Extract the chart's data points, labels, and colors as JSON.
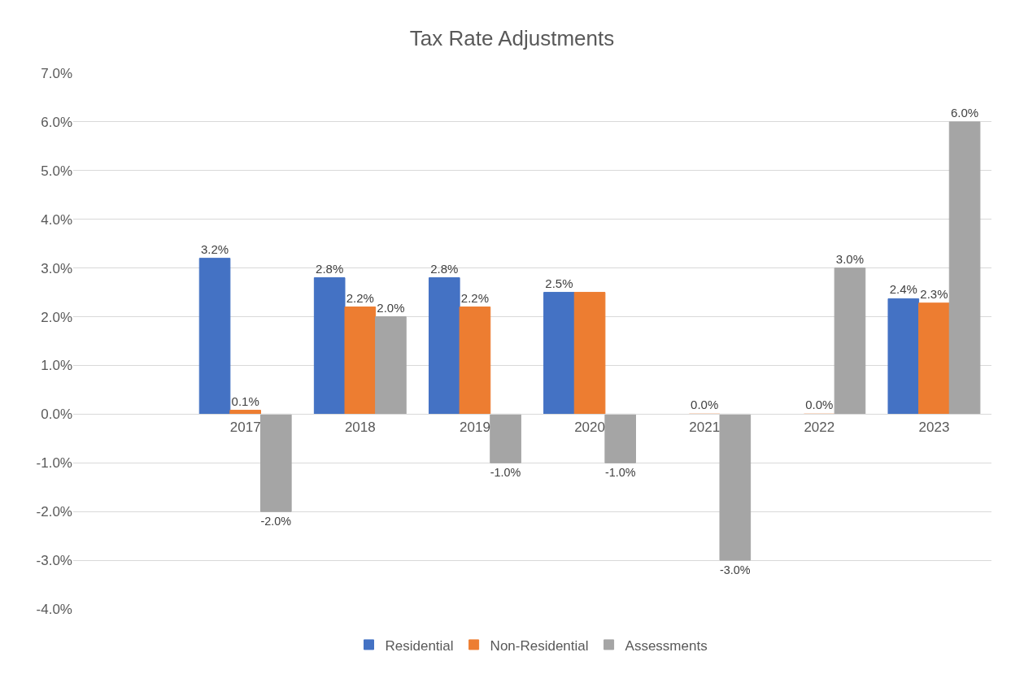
{
  "chart_data": {
    "type": "bar",
    "title": "Tax Rate Adjustments",
    "categories": [
      null,
      "2017",
      "2018",
      "2019",
      "2020",
      "2021",
      "2022",
      "2023"
    ],
    "series": [
      {
        "name": "Residential",
        "color": "#4472c4",
        "values": [
          null,
          3.2,
          2.8,
          2.8,
          2.5,
          null,
          null,
          2.37
        ],
        "value_labels": [
          null,
          "3.2%",
          "2.8%",
          "2.8%",
          "2.5%",
          null,
          null,
          "2.4%"
        ]
      },
      {
        "name": "Non-Residential",
        "color": "#ed7d31",
        "values": [
          null,
          0.08,
          2.2,
          2.2,
          2.5,
          0.0,
          0.0,
          2.28
        ],
        "value_labels": [
          null,
          "0.1%",
          "2.2%",
          "2.2%",
          null,
          "0.0%",
          "0.0%",
          "2.3%"
        ]
      },
      {
        "name": "Assessments",
        "color": "#a5a5a5",
        "values": [
          null,
          -2.0,
          2.0,
          -1.0,
          -1.0,
          -3.0,
          3.0,
          6.0
        ],
        "value_labels": [
          null,
          "-2.0%",
          "2.0%",
          "-1.0%",
          "-1.0%",
          "-3.0%",
          "3.0%",
          "6.0%"
        ]
      }
    ],
    "ylim": [
      -4,
      7
    ],
    "yticks": [
      {
        "value": -4,
        "label": "-4.0%"
      },
      {
        "value": -3,
        "label": "-3.0%"
      },
      {
        "value": -2,
        "label": "-2.0%"
      },
      {
        "value": -1,
        "label": "-1.0%"
      },
      {
        "value": 0,
        "label": "0.0%"
      },
      {
        "value": 1,
        "label": "1.0%"
      },
      {
        "value": 2,
        "label": "2.0%"
      },
      {
        "value": 3,
        "label": "3.0%"
      },
      {
        "value": 4,
        "label": "4.0%"
      },
      {
        "value": 5,
        "label": "5.0%"
      },
      {
        "value": 6,
        "label": "6.0%"
      },
      {
        "value": 7,
        "label": "7.0%"
      }
    ],
    "grid": "y",
    "legend": "bottom"
  }
}
